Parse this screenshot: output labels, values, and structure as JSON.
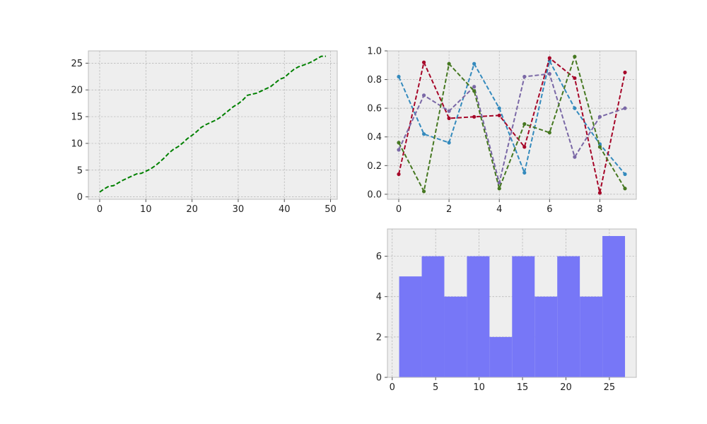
{
  "chart_data": [
    {
      "type": "line",
      "title": "",
      "xlabel": "",
      "ylabel": "",
      "xlim": [
        -2.45,
        51.45
      ],
      "ylim": [
        -0.45,
        27.3
      ],
      "xticks": [
        0,
        10,
        20,
        30,
        40,
        50
      ],
      "yticks": [
        0,
        5,
        10,
        15,
        20,
        25
      ],
      "grid": true,
      "series": [
        {
          "color": "#008000",
          "linestyle": "dashed",
          "x": [
            0,
            1,
            2,
            3,
            4,
            5,
            6,
            7,
            8,
            9,
            10,
            11,
            12,
            13,
            14,
            15,
            16,
            17,
            18,
            19,
            20,
            21,
            22,
            23,
            24,
            25,
            26,
            27,
            28,
            29,
            30,
            31,
            32,
            33,
            34,
            35,
            36,
            37,
            38,
            39,
            40,
            41,
            42,
            43,
            44,
            45,
            46,
            47,
            48,
            49
          ],
          "values": [
            0.9,
            1.5,
            2.0,
            2.1,
            2.6,
            3.1,
            3.5,
            3.9,
            4.3,
            4.4,
            4.8,
            5.2,
            5.8,
            6.5,
            7.3,
            8.2,
            8.9,
            9.4,
            10.1,
            10.9,
            11.5,
            12.2,
            13.0,
            13.5,
            13.9,
            14.3,
            14.8,
            15.5,
            16.2,
            16.9,
            17.4,
            18.1,
            19.0,
            19.2,
            19.4,
            19.8,
            20.2,
            20.6,
            21.3,
            22.0,
            22.3,
            23.1,
            23.8,
            24.3,
            24.6,
            24.9,
            25.3,
            25.8,
            26.3,
            26.3
          ]
        }
      ]
    },
    {
      "type": "line",
      "title": "",
      "xlabel": "",
      "ylabel": "",
      "xlim": [
        -0.45,
        9.45
      ],
      "ylim": [
        -0.035,
        1.0
      ],
      "xticks": [
        0,
        2,
        4,
        6,
        8
      ],
      "yticks": [
        0.0,
        0.2,
        0.4,
        0.6,
        0.8,
        1.0
      ],
      "grid": true,
      "x": [
        0,
        1,
        2,
        3,
        4,
        5,
        6,
        7,
        8,
        9
      ],
      "series": [
        {
          "color": "#348ABD",
          "linestyle": "dashed",
          "marker": "dot",
          "values": [
            0.82,
            0.42,
            0.36,
            0.91,
            0.6,
            0.15,
            0.93,
            0.6,
            0.35,
            0.14
          ]
        },
        {
          "color": "#A60628",
          "linestyle": "dashed",
          "marker": "dot",
          "values": [
            0.14,
            0.92,
            0.53,
            0.54,
            0.55,
            0.33,
            0.95,
            0.81,
            0.01,
            0.85
          ]
        },
        {
          "color": "#7A68A6",
          "linestyle": "dashed",
          "marker": "dot",
          "values": [
            0.31,
            0.69,
            0.58,
            0.75,
            0.08,
            0.82,
            0.84,
            0.26,
            0.54,
            0.6
          ]
        },
        {
          "color": "#467821",
          "linestyle": "dashed",
          "marker": "dot",
          "values": [
            0.36,
            0.02,
            0.91,
            0.72,
            0.04,
            0.49,
            0.43,
            0.96,
            0.33,
            0.04
          ]
        }
      ]
    },
    {
      "type": "bar",
      "subtype": "histogram",
      "title": "",
      "xlabel": "",
      "ylabel": "",
      "color": "#7777F7",
      "xlim": [
        -0.55,
        28.1
      ],
      "ylim": [
        0,
        7.35
      ],
      "xticks": [
        0,
        5,
        10,
        15,
        20,
        25
      ],
      "yticks": [
        0,
        2,
        4,
        6
      ],
      "grid": true,
      "bin_edges": [
        0.8,
        3.4,
        6.0,
        8.6,
        11.2,
        13.8,
        16.4,
        19.0,
        21.6,
        24.2,
        26.8
      ],
      "values": [
        5,
        6,
        4,
        6,
        2,
        6,
        4,
        6,
        4,
        7
      ]
    }
  ]
}
